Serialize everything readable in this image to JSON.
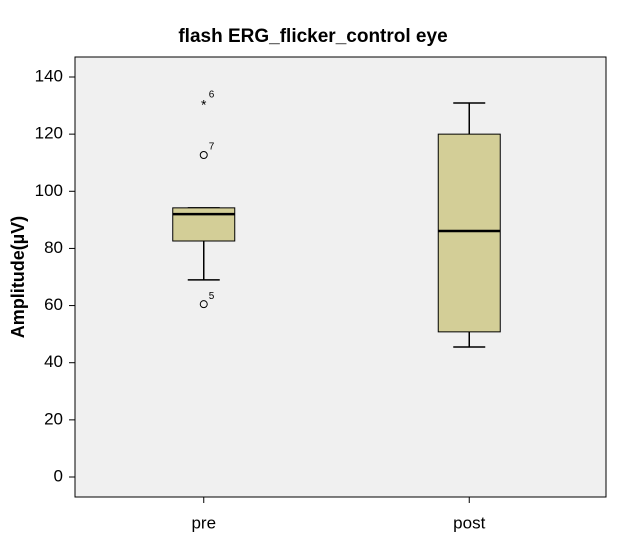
{
  "chart_data": {
    "type": "box",
    "title": "flash ERG_flicker_control eye",
    "ylabel": "Amplitude(µV)",
    "categories": [
      "pre",
      "post"
    ],
    "color": "#d3ce97",
    "background": "#f0f0f0",
    "ylim": [
      -7,
      147
    ],
    "yticks": [
      0,
      20,
      40,
      60,
      80,
      100,
      120,
      140
    ],
    "boxes": [
      {
        "min": 69,
        "q1": 82.6,
        "median": 92,
        "q3": 94.2,
        "max": 94.2,
        "outliers": [
          {
            "value": 60.5,
            "label": 5,
            "kind": "circle"
          },
          {
            "value": 112.7,
            "label": 7,
            "kind": "circle"
          },
          {
            "value": 130.9,
            "label": 6,
            "kind": "star"
          }
        ]
      },
      {
        "min": 45.5,
        "q1": 50.8,
        "median": 86.1,
        "q3": 120,
        "max": 130.9,
        "outliers": []
      }
    ]
  }
}
